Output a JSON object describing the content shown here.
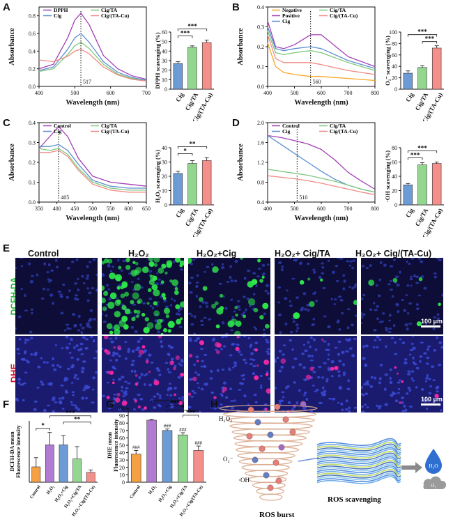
{
  "panel_letters": {
    "A": "A",
    "B": "B",
    "C": "C",
    "D": "D",
    "E": "E",
    "F": "F",
    "G": "G",
    "H": "H"
  },
  "colors": {
    "purple": "#a23fb5",
    "green": "#7ec87c",
    "blue": "#5b8fd1",
    "pink": "#f08b84",
    "orange": "#f5a623",
    "bar_blue": "#6c9bd6",
    "bar_green": "#93d690",
    "bar_pink": "#f4908b",
    "bar_purple": "#b27bd3",
    "bar_orange": "#f5a043"
  },
  "chart_data": [
    {
      "id": "A_spectrum",
      "type": "line",
      "xlabel": "Wavelength (nm)",
      "ylabel": "Absorbance",
      "xlim": [
        400,
        700
      ],
      "ylim": [
        0.0,
        0.9
      ],
      "xticks": [
        400,
        500,
        600,
        700
      ],
      "yticks": [
        0.0,
        0.2,
        0.4,
        0.6,
        0.8
      ],
      "annotation": "517",
      "marker_x": 517,
      "series": [
        {
          "name": "DPPH",
          "color": "#a23fb5",
          "x": [
            400,
            440,
            480,
            500,
            517,
            540,
            580,
            620,
            660,
            700
          ],
          "y": [
            0.2,
            0.25,
            0.55,
            0.75,
            0.83,
            0.7,
            0.35,
            0.2,
            0.12,
            0.08
          ]
        },
        {
          "name": "Cig",
          "color": "#5b8fd1",
          "x": [
            400,
            440,
            480,
            500,
            517,
            540,
            580,
            620,
            660,
            700
          ],
          "y": [
            0.18,
            0.22,
            0.42,
            0.55,
            0.6,
            0.5,
            0.28,
            0.16,
            0.1,
            0.07
          ]
        },
        {
          "name": "Cig/TA",
          "color": "#7ec87c",
          "x": [
            400,
            440,
            480,
            500,
            517,
            540,
            580,
            620,
            660,
            700
          ],
          "y": [
            0.17,
            0.2,
            0.36,
            0.46,
            0.5,
            0.43,
            0.25,
            0.14,
            0.09,
            0.06
          ]
        },
        {
          "name": "Cig/(TA-Cu)",
          "color": "#f08b84",
          "x": [
            400,
            440,
            480,
            500,
            517,
            540,
            580,
            620,
            660,
            700
          ],
          "y": [
            0.3,
            0.28,
            0.34,
            0.4,
            0.42,
            0.37,
            0.22,
            0.13,
            0.08,
            0.06
          ]
        }
      ]
    },
    {
      "id": "A_bar",
      "type": "bar",
      "ylabel": "DPPH scavenging (%)",
      "categories": [
        "Cig",
        "Cig/TA",
        "Cig/(TA-Cu)"
      ],
      "values": [
        27,
        44,
        49
      ],
      "errors": [
        2,
        1.5,
        2.5
      ],
      "ylim": [
        0,
        60
      ],
      "yticks": [
        0,
        10,
        20,
        30,
        40,
        50,
        60
      ],
      "bar_colors": [
        "#6c9bd6",
        "#93d690",
        "#f4908b"
      ],
      "brackets": [
        {
          "from": 0,
          "to": 1,
          "label": "***"
        },
        {
          "from": 0,
          "to": 2,
          "label": "***"
        }
      ]
    },
    {
      "id": "B_spectrum",
      "type": "line",
      "xlabel": "Wavelength (nm)",
      "ylabel": "Absorbance",
      "xlim": [
        400,
        800
      ],
      "ylim": [
        0.0,
        0.4
      ],
      "xticks": [
        400,
        500,
        600,
        700,
        800
      ],
      "yticks": [
        0.0,
        0.1,
        0.2,
        0.3,
        0.4
      ],
      "annotation": "560",
      "marker_x": 560,
      "series": [
        {
          "name": "Negative",
          "color": "#f5a623",
          "x": [
            400,
            430,
            460,
            500,
            560,
            600,
            700,
            800
          ],
          "y": [
            0.22,
            0.1,
            0.07,
            0.06,
            0.05,
            0.05,
            0.04,
            0.03
          ]
        },
        {
          "name": "Positive",
          "color": "#a23fb5",
          "x": [
            400,
            430,
            460,
            500,
            560,
            600,
            700,
            800
          ],
          "y": [
            0.33,
            0.2,
            0.19,
            0.21,
            0.26,
            0.26,
            0.15,
            0.1
          ]
        },
        {
          "name": "Cig",
          "color": "#5b8fd1",
          "x": [
            400,
            430,
            460,
            500,
            560,
            600,
            700,
            800
          ],
          "y": [
            0.3,
            0.19,
            0.18,
            0.19,
            0.2,
            0.19,
            0.13,
            0.09
          ]
        },
        {
          "name": "Cig/TA",
          "color": "#7ec87c",
          "x": [
            400,
            430,
            460,
            500,
            560,
            600,
            700,
            800
          ],
          "y": [
            0.28,
            0.17,
            0.16,
            0.17,
            0.18,
            0.17,
            0.12,
            0.08
          ]
        },
        {
          "name": "Cig/(TA-Cu)",
          "color": "#f08b84",
          "x": [
            400,
            430,
            460,
            500,
            560,
            600,
            700,
            800
          ],
          "y": [
            0.26,
            0.14,
            0.12,
            0.12,
            0.12,
            0.11,
            0.08,
            0.06
          ]
        }
      ]
    },
    {
      "id": "B_bar",
      "type": "bar",
      "ylabel": "O₂⁻ scavenging (%)",
      "categories": [
        "Cig",
        "Cig/TA",
        "Cig/(TA-Cu)"
      ],
      "values": [
        28,
        38,
        72
      ],
      "errors": [
        4,
        3,
        4
      ],
      "ylim": [
        0,
        100
      ],
      "yticks": [
        0,
        20,
        40,
        60,
        80,
        100
      ],
      "bar_colors": [
        "#6c9bd6",
        "#93d690",
        "#f4908b"
      ],
      "brackets": [
        {
          "from": 1,
          "to": 2,
          "label": "***"
        },
        {
          "from": 0,
          "to": 2,
          "label": "***"
        }
      ]
    },
    {
      "id": "C_spectrum",
      "type": "line",
      "xlabel": "Wavelength (nm)",
      "ylabel": "Absorbance",
      "xlim": [
        350,
        650
      ],
      "ylim": [
        0.0,
        0.4
      ],
      "xticks": [
        350,
        400,
        450,
        500,
        550,
        600,
        650
      ],
      "yticks": [
        0.0,
        0.1,
        0.2,
        0.3,
        0.4
      ],
      "annotation": "405",
      "marker_x": 405,
      "series": [
        {
          "name": "Control",
          "color": "#a23fb5",
          "x": [
            350,
            380,
            405,
            430,
            460,
            500,
            550,
            600,
            650
          ],
          "y": [
            0.27,
            0.33,
            0.38,
            0.33,
            0.22,
            0.13,
            0.1,
            0.09,
            0.08
          ]
        },
        {
          "name": "Cig",
          "color": "#5b8fd1",
          "x": [
            350,
            380,
            405,
            430,
            460,
            500,
            550,
            600,
            650
          ],
          "y": [
            0.28,
            0.28,
            0.29,
            0.26,
            0.19,
            0.11,
            0.08,
            0.07,
            0.07
          ]
        },
        {
          "name": "Cig/TA",
          "color": "#7ec87c",
          "x": [
            350,
            380,
            405,
            430,
            460,
            500,
            550,
            600,
            650
          ],
          "y": [
            0.27,
            0.26,
            0.27,
            0.24,
            0.17,
            0.1,
            0.07,
            0.06,
            0.06
          ]
        },
        {
          "name": "Cig/(TA-Cu)",
          "color": "#f08b84",
          "x": [
            350,
            380,
            405,
            430,
            460,
            500,
            550,
            600,
            650
          ],
          "y": [
            0.25,
            0.25,
            0.26,
            0.23,
            0.16,
            0.09,
            0.06,
            0.05,
            0.05
          ]
        }
      ]
    },
    {
      "id": "C_bar",
      "type": "bar",
      "ylabel": "H₂O₂ scavenging (%)",
      "categories": [
        "Cig",
        "Cig/TA",
        "Cig/(TA-Cu)"
      ],
      "values": [
        22,
        29,
        31
      ],
      "errors": [
        1.5,
        2,
        2
      ],
      "ylim": [
        0,
        40
      ],
      "yticks": [
        0,
        10,
        20,
        30,
        40
      ],
      "bar_colors": [
        "#6c9bd6",
        "#93d690",
        "#f4908b"
      ],
      "brackets": [
        {
          "from": 0,
          "to": 1,
          "label": "*"
        },
        {
          "from": 0,
          "to": 2,
          "label": "**"
        }
      ]
    },
    {
      "id": "D_spectrum",
      "type": "line",
      "xlabel": "Wavelength (nm)",
      "ylabel": "Absorbance",
      "xlim": [
        400,
        800
      ],
      "ylim": [
        0.4,
        2.0
      ],
      "xticks": [
        400,
        500,
        600,
        700,
        800
      ],
      "yticks": [
        0.4,
        0.8,
        1.2,
        1.6,
        2.0
      ],
      "annotation": "510",
      "marker_x": 510,
      "series": [
        {
          "name": "Control",
          "color": "#a23fb5",
          "x": [
            400,
            450,
            500,
            550,
            600,
            650,
            700,
            750,
            800
          ],
          "y": [
            1.74,
            1.7,
            1.64,
            1.57,
            1.46,
            1.25,
            1.0,
            0.82,
            0.66
          ]
        },
        {
          "name": "Cig",
          "color": "#5b8fd1",
          "x": [
            400,
            450,
            500,
            550,
            600,
            650,
            700,
            750,
            800
          ],
          "y": [
            1.74,
            1.56,
            1.38,
            1.2,
            1.02,
            0.86,
            0.74,
            0.66,
            0.6
          ]
        },
        {
          "name": "Cig/TA",
          "color": "#7ec87c",
          "x": [
            400,
            450,
            500,
            550,
            600,
            650,
            700,
            750,
            800
          ],
          "y": [
            1.06,
            1.02,
            0.98,
            0.94,
            0.88,
            0.82,
            0.74,
            0.66,
            0.6
          ]
        },
        {
          "name": "Cig/(TA-Cu)",
          "color": "#f08b84",
          "x": [
            400,
            450,
            500,
            550,
            600,
            650,
            700,
            750,
            800
          ],
          "y": [
            0.93,
            0.9,
            0.87,
            0.83,
            0.78,
            0.72,
            0.66,
            0.6,
            0.55
          ]
        }
      ]
    },
    {
      "id": "D_bar",
      "type": "bar",
      "ylabel": "·OH scavenging (%)",
      "categories": [
        "Cig",
        "Cig/TA",
        "Cig/(TA-Cu)"
      ],
      "values": [
        28,
        56,
        58
      ],
      "errors": [
        2,
        3,
        2
      ],
      "ylim": [
        0,
        80
      ],
      "yticks": [
        0,
        20,
        40,
        60,
        80
      ],
      "bar_colors": [
        "#6c9bd6",
        "#93d690",
        "#f4908b"
      ],
      "brackets": [
        {
          "from": 0,
          "to": 1,
          "label": "***"
        },
        {
          "from": 0,
          "to": 2,
          "label": "***"
        }
      ]
    },
    {
      "id": "F_bar",
      "type": "bar",
      "ylabel": "DCFH-DA mean Fluorescence intensity",
      "categories": [
        "Control",
        "H₂O₂",
        "H₂O₂+Cig",
        "H₂O₂+Cig/TA",
        "H₂O₂+Cig/(TA-Cu)"
      ],
      "values": [
        25,
        61,
        61,
        38,
        16
      ],
      "errors": [
        15,
        20,
        15,
        20,
        4
      ],
      "ylim": [
        0,
        100
      ],
      "yticks": [],
      "bar_colors": [
        "#f5a043",
        "#b27bd3",
        "#6c9bd6",
        "#93d690",
        "#f4908b"
      ],
      "brackets": [
        {
          "from": 0,
          "to": 1,
          "label": "*"
        },
        {
          "from": 2,
          "to": 4,
          "label": "**"
        },
        {
          "from": 1,
          "to": 4,
          "label": "***"
        }
      ]
    },
    {
      "id": "G_bar",
      "type": "bar",
      "ylabel": "DHE mean Fluorescence intensity",
      "categories": [
        "Control",
        "H₂O₂",
        "H₂O₂+Cig",
        "H₂O₂+Cig/TA",
        "H₂O₂+Cig/(TA-Cu)"
      ],
      "values": [
        38,
        84,
        70,
        64,
        43
      ],
      "errors": [
        5,
        1,
        2,
        3,
        6
      ],
      "ylim": [
        0,
        100
      ],
      "yticks": [
        0,
        10,
        20,
        30,
        40,
        50,
        60,
        70,
        80,
        90,
        100
      ],
      "bar_colors": [
        "#f5a043",
        "#b27bd3",
        "#6c9bd6",
        "#93d690",
        "#f4908b"
      ],
      "bar_labels": [
        "###",
        "",
        "###",
        "###",
        "###"
      ],
      "brackets": [
        {
          "from": 3,
          "to": 4,
          "label": "***"
        },
        {
          "from": 2,
          "to": 4,
          "label": "*"
        },
        {
          "from": 2,
          "to": 3,
          "label": "***"
        },
        {
          "from": 1,
          "to": 3,
          "label": "***"
        },
        {
          "from": 0,
          "to": 1,
          "label": "***"
        }
      ]
    }
  ],
  "panel_E": {
    "columns": [
      "Control",
      "H₂O₂",
      "H₂O₂+Cig",
      "H₂O₂+ Cig/TA",
      "H₂O₂+ Cig/(TA-Cu)"
    ],
    "rows": [
      "DCFH-DA",
      "DHE"
    ],
    "scale_bar": "100 μm",
    "green_density": [
      0,
      95,
      28,
      6,
      5
    ],
    "red_density": [
      0,
      30,
      20,
      8,
      5
    ]
  },
  "panel_H": {
    "labels": {
      "h2o2": "H₂O₂",
      "o2": "O₂⁻",
      "oh": "·OH",
      "burst": "ROS burst",
      "scavenging": "ROS scavenging",
      "water": "H₂O",
      "oxygen": "O₂"
    }
  }
}
